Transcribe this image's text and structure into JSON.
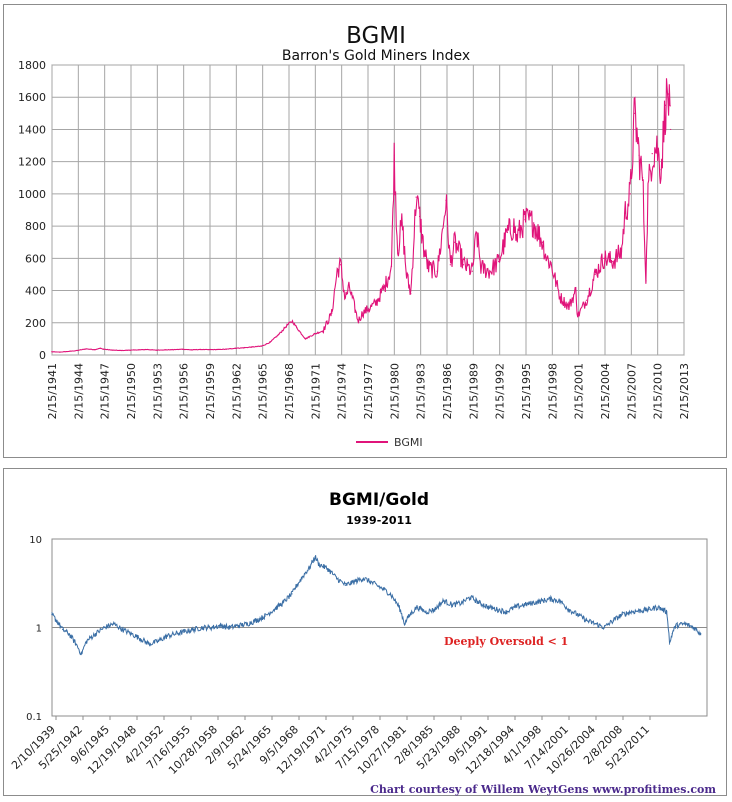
{
  "chart_data": [
    {
      "type": "line",
      "title": "BGMI",
      "subtitle": "Barron's Gold Miners Index",
      "xlabel": "",
      "ylabel": "",
      "ylim": [
        0,
        1800
      ],
      "yticks": [
        "0",
        "200",
        "400",
        "600",
        "800",
        "1000",
        "1200",
        "1400",
        "1600",
        "1800"
      ],
      "xticks": [
        "2/15/1941",
        "2/15/1944",
        "2/15/1947",
        "2/15/1950",
        "2/15/1953",
        "2/15/1956",
        "2/15/1959",
        "2/15/1962",
        "2/15/1965",
        "2/15/1968",
        "2/15/1971",
        "2/15/1974",
        "2/15/1977",
        "2/15/1980",
        "2/15/1983",
        "2/15/1986",
        "2/15/1989",
        "2/15/1992",
        "2/15/1995",
        "2/15/1998",
        "2/15/2001",
        "2/15/2004",
        "2/15/2007",
        "2/15/2010",
        "2/15/2013"
      ],
      "xlim": [
        1941.12,
        2013.12
      ],
      "grid": true,
      "legend": {
        "position": "bottom",
        "entries": [
          "BGMI"
        ]
      },
      "series": [
        {
          "name": "BGMI",
          "color": "#e0147a",
          "x": [
            1941.1,
            1942,
            1943,
            1944,
            1945,
            1946,
            1946.6,
            1947,
            1948,
            1949,
            1950,
            1951,
            1952,
            1953,
            1954,
            1955,
            1956,
            1957,
            1958,
            1959,
            1960,
            1961,
            1962,
            1963,
            1964,
            1965,
            1966,
            1967,
            1968,
            1968.5,
            1969,
            1970,
            1971,
            1972,
            1973,
            1973.6,
            1974,
            1974.5,
            1975,
            1976,
            1976.5,
            1977,
            1978,
            1979,
            1979.8,
            1980.1,
            1980.5,
            1981,
            1981.5,
            1982,
            1982.6,
            1983,
            1983.5,
            1984,
            1985,
            1985.5,
            1986,
            1986.5,
            1987,
            1987.8,
            1988,
            1989,
            1989.5,
            1990,
            1991,
            1992,
            1993,
            1993.8,
            1994,
            1995,
            1996,
            1997,
            1997.5,
            1998,
            1999,
            2000,
            2000.8,
            2001,
            2002,
            2003,
            2004,
            2005,
            2006,
            2006.4,
            2007,
            2007.5,
            2008,
            2008.4,
            2008.8,
            2009,
            2009.5,
            2010,
            2010.5,
            2011,
            2011.3,
            2011.6
          ],
          "values": [
            20,
            18,
            22,
            28,
            38,
            33,
            42,
            36,
            30,
            28,
            30,
            32,
            34,
            30,
            32,
            33,
            36,
            32,
            34,
            33,
            34,
            36,
            42,
            45,
            50,
            55,
            80,
            130,
            190,
            210,
            170,
            100,
            130,
            150,
            260,
            520,
            560,
            350,
            420,
            210,
            260,
            280,
            320,
            420,
            550,
            1240,
            650,
            820,
            500,
            380,
            980,
            860,
            650,
            540,
            520,
            720,
            960,
            560,
            700,
            600,
            560,
            520,
            760,
            540,
            520,
            580,
            760,
            800,
            720,
            840,
            820,
            700,
            600,
            560,
            360,
            300,
            400,
            240,
            340,
            500,
            600,
            580,
            640,
            880,
            1000,
            1500,
            1240,
            1100,
            460,
            1000,
            1250,
            1300,
            1150,
            1550,
            1620,
            1400
          ]
        }
      ]
    },
    {
      "type": "line",
      "title": "BGMI/Gold",
      "subtitle": "1939-2011",
      "xlabel": "",
      "ylabel": "",
      "yscale": "log",
      "ylim": [
        0.1,
        10
      ],
      "yticks": [
        "0.1",
        "1",
        "10"
      ],
      "xticks": [
        "2/10/1939",
        "5/25/1942",
        "9/6/1945",
        "12/19/1948",
        "4/2/1952",
        "7/16/1955",
        "10/28/1958",
        "2/9/1962",
        "5/24/1965",
        "9/5/1968",
        "12/19/1971",
        "4/2/1975",
        "7/15/1978",
        "10/27/1981",
        "2/8/1985",
        "5/23/1988",
        "9/5/1991",
        "12/18/1994",
        "4/1/1998",
        "7/14/2001",
        "10/26/2004",
        "2/8/2008",
        "5/23/2011"
      ],
      "xlim": [
        1939.11,
        2012.5
      ],
      "grid": true,
      "annotation": "Deeply Oversold < 1",
      "credit": "Chart courtesy of Willem WeytGens  www.profitimes.com",
      "series": [
        {
          "name": "BGMI/Gold",
          "color": "#3a6ea5",
          "x": [
            1939.1,
            1939.6,
            1940.3,
            1941,
            1941.8,
            1942.4,
            1943,
            1944,
            1945,
            1946,
            1947,
            1948,
            1949,
            1950,
            1951,
            1952,
            1953,
            1954,
            1955,
            1956,
            1957,
            1958,
            1959,
            1960,
            1961,
            1962,
            1963,
            1964,
            1965,
            1966,
            1967,
            1968,
            1968.6,
            1969,
            1970,
            1971,
            1972,
            1973,
            1974,
            1975,
            1976,
            1977,
            1978,
            1978.6,
            1979,
            1980,
            1981,
            1982,
            1983,
            1984,
            1985,
            1986,
            1987,
            1988,
            1989,
            1990,
            1991,
            1992,
            1993,
            1994,
            1995,
            1996,
            1997,
            1998,
            1999,
            2000,
            2001,
            2002,
            2003,
            2004,
            2005,
            2006,
            2007,
            2008,
            2008.3,
            2008.6,
            2009,
            2010,
            2011,
            2011.8
          ],
          "values": [
            1.4,
            1.2,
            0.95,
            0.85,
            0.65,
            0.5,
            0.7,
            0.85,
            1.0,
            1.1,
            0.95,
            0.85,
            0.75,
            0.65,
            0.7,
            0.8,
            0.85,
            0.9,
            0.95,
            1.0,
            1.0,
            1.05,
            1.0,
            1.05,
            1.1,
            1.2,
            1.35,
            1.6,
            1.9,
            2.4,
            3.5,
            4.8,
            6.3,
            5.2,
            4.6,
            3.6,
            3.0,
            3.3,
            3.6,
            3.2,
            2.8,
            2.4,
            1.7,
            1.1,
            1.3,
            1.7,
            1.5,
            1.6,
            2.0,
            1.8,
            1.9,
            2.2,
            1.9,
            1.7,
            1.6,
            1.5,
            1.7,
            1.8,
            1.9,
            2.0,
            2.1,
            2.0,
            1.6,
            1.4,
            1.2,
            1.1,
            1.0,
            1.2,
            1.4,
            1.5,
            1.55,
            1.6,
            1.7,
            1.5,
            0.65,
            0.85,
            1.05,
            1.1,
            1.0,
            0.85
          ]
        }
      ]
    }
  ]
}
